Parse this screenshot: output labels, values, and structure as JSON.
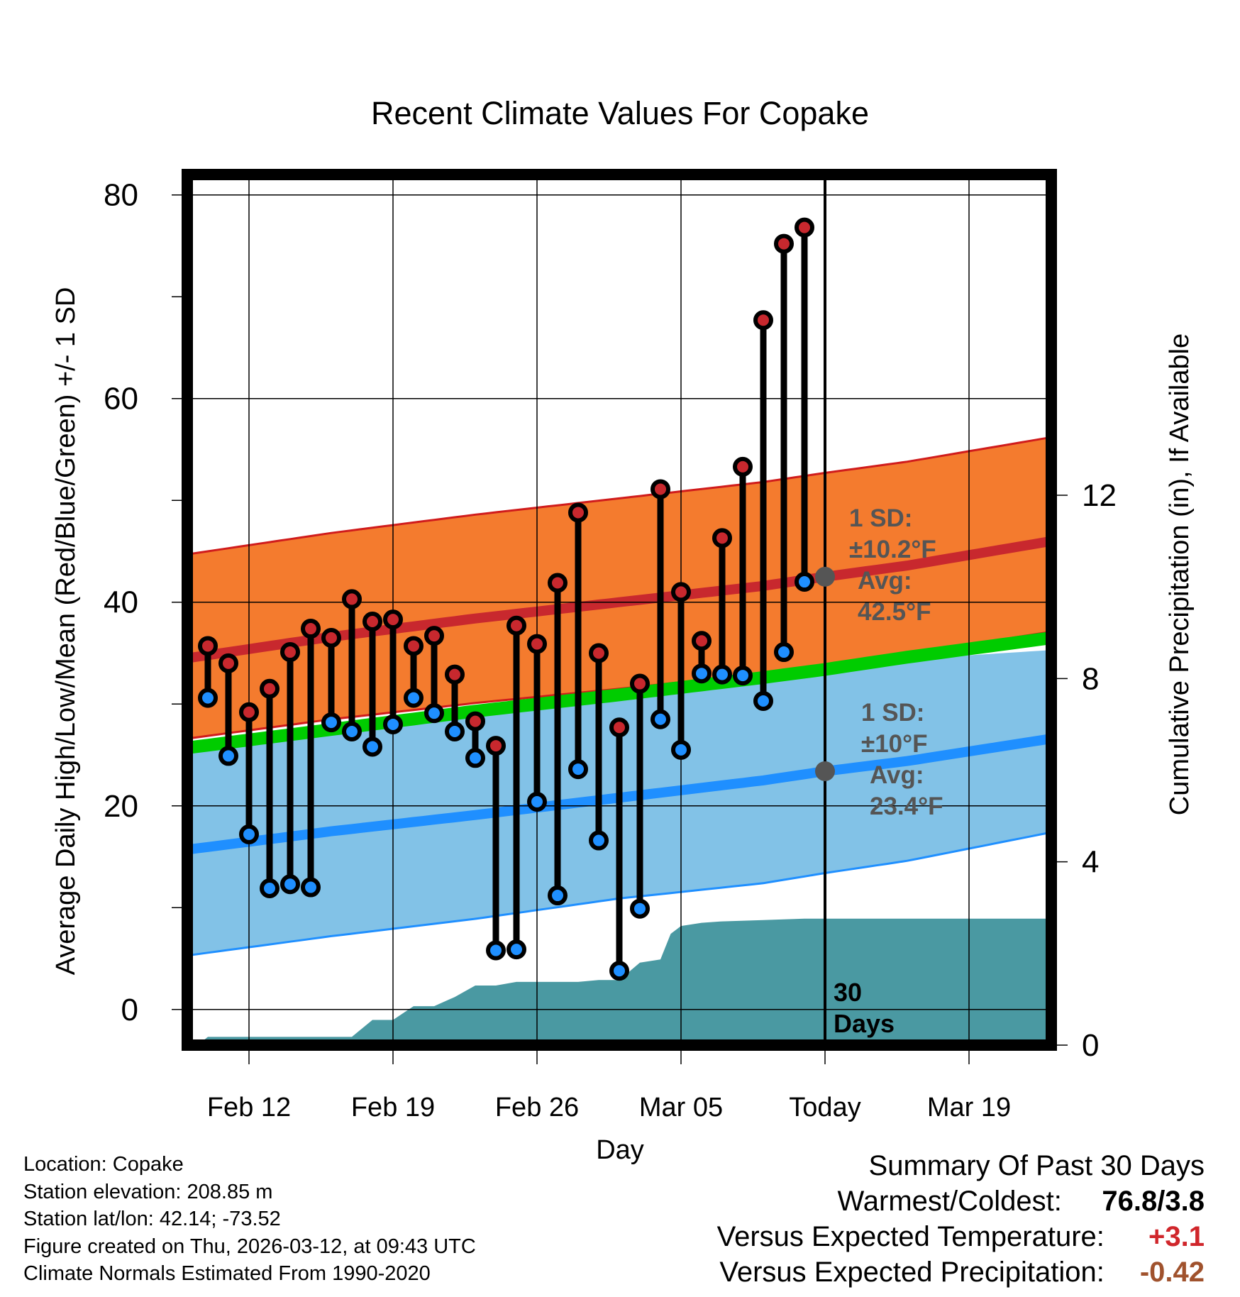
{
  "chart_data": {
    "type": "line",
    "title": "Recent Climate Values For Copake",
    "xlabel": "Day",
    "ylabel": "Average Daily High/Low/Mean (Red/Blue/Green) +/- 1 SD",
    "y2label": "Cumulative Precipitation (in), If Available",
    "x_start": "Feb 9",
    "x_range_days": [
      0,
      42
    ],
    "x_ticks": [
      {
        "day": 3,
        "label": "Feb 12"
      },
      {
        "day": 10,
        "label": "Feb 19"
      },
      {
        "day": 17,
        "label": "Feb 26"
      },
      {
        "day": 24,
        "label": "Mar 05"
      },
      {
        "day": 31,
        "label": "Today"
      },
      {
        "day": 38,
        "label": "Mar 19"
      }
    ],
    "ylim": [
      -3.5,
      82
    ],
    "yticks": [
      0,
      20,
      40,
      60,
      80
    ],
    "y2lim": [
      0,
      19
    ],
    "y2ticks": [
      0,
      4,
      8,
      12
    ],
    "today_day": 31,
    "period_label": "30 Days",
    "series": [
      {
        "name": "Daily High (observed)",
        "color": "#c8282e",
        "day": [
          1,
          2,
          3,
          4,
          5,
          6,
          7,
          8,
          9,
          10,
          11,
          12,
          13,
          14,
          15,
          16,
          17,
          18,
          19,
          20,
          21,
          22,
          23,
          24,
          25,
          26,
          27,
          28,
          29,
          30
        ],
        "values": [
          35.7,
          34.0,
          29.2,
          31.5,
          35.1,
          37.4,
          36.5,
          40.3,
          38.1,
          38.3,
          35.7,
          36.7,
          32.9,
          28.3,
          25.9,
          37.7,
          35.9,
          41.9,
          48.8,
          35.0,
          27.7,
          32.0,
          51.1,
          41.0,
          36.2,
          46.3,
          53.3,
          67.7,
          75.2,
          76.8
        ]
      },
      {
        "name": "Daily Low (observed)",
        "color": "#1f8fff",
        "day": [
          1,
          2,
          3,
          4,
          5,
          6,
          7,
          8,
          9,
          10,
          11,
          12,
          13,
          14,
          15,
          16,
          17,
          18,
          19,
          20,
          21,
          22,
          23,
          24,
          25,
          26,
          27,
          28,
          29,
          30
        ],
        "values": [
          30.6,
          24.9,
          17.2,
          11.9,
          12.3,
          12.0,
          28.2,
          27.3,
          25.8,
          28.0,
          30.6,
          29.1,
          27.3,
          24.7,
          5.8,
          5.9,
          20.4,
          11.2,
          23.6,
          16.6,
          3.8,
          9.9,
          28.5,
          25.5,
          33.0,
          32.9,
          32.8,
          30.3,
          35.1,
          42.0
        ]
      },
      {
        "name": "Normal High",
        "color": "#c8282e",
        "day": [
          0,
          7,
          14,
          21,
          28,
          31,
          35,
          42
        ],
        "values": [
          34.5,
          36.6,
          38.4,
          40.0,
          41.6,
          42.5,
          43.6,
          46.0
        ]
      },
      {
        "name": "Normal High + 1 SD",
        "day": [
          0,
          7,
          14,
          21,
          28,
          31,
          35,
          42
        ],
        "values": [
          44.7,
          46.8,
          48.6,
          50.2,
          51.8,
          52.7,
          53.8,
          56.2
        ]
      },
      {
        "name": "Normal High - 1 SD",
        "day": [
          0,
          7,
          14,
          21,
          28,
          31,
          35,
          42
        ],
        "values": [
          26.6,
          28.5,
          30.1,
          31.5,
          33.0,
          33.6,
          34.9,
          37.1
        ]
      },
      {
        "name": "Normal Low",
        "color": "#1f8fff",
        "day": [
          0,
          7,
          14,
          21,
          28,
          31,
          35,
          42
        ],
        "values": [
          15.7,
          17.5,
          19.1,
          20.8,
          22.5,
          23.4,
          24.4,
          26.6
        ]
      },
      {
        "name": "Normal Low + 1 SD",
        "day": [
          0,
          7,
          14,
          21,
          28,
          31,
          35,
          42
        ],
        "values": [
          25.1,
          27.5,
          29.1,
          30.6,
          32.2,
          33.4,
          34.4,
          35.3
        ]
      },
      {
        "name": "Normal Low - 1 SD",
        "day": [
          0,
          7,
          14,
          21,
          28,
          31,
          35,
          42
        ],
        "values": [
          5.3,
          7.2,
          8.9,
          10.9,
          12.4,
          13.4,
          14.6,
          17.4
        ]
      },
      {
        "name": "Normal Mean",
        "color": "#00cc00",
        "day": [
          0,
          7,
          14,
          21,
          28,
          31,
          35,
          42
        ],
        "values": [
          25.7,
          27.5,
          29.3,
          30.9,
          32.6,
          33.4,
          34.6,
          36.5
        ]
      },
      {
        "name": "Cumulative Precipitation (in)",
        "color": "#4a99a2",
        "axis": "y2",
        "day": [
          0,
          0.5,
          1,
          8,
          9,
          10,
          11,
          12,
          13,
          14,
          15,
          16,
          17,
          18,
          19,
          20,
          21,
          22,
          23,
          23.5,
          24,
          25,
          26,
          28,
          30,
          42
        ],
        "values": [
          0,
          0,
          0.18,
          0.18,
          0.55,
          0.55,
          0.85,
          0.85,
          1.05,
          1.3,
          1.3,
          1.38,
          1.38,
          1.38,
          1.38,
          1.42,
          1.42,
          1.8,
          1.87,
          2.43,
          2.6,
          2.67,
          2.7,
          2.73,
          2.76,
          2.76
        ]
      }
    ],
    "annotations": [
      {
        "label": "1 SD:",
        "sub": "±10.2°F",
        "avg_label": "Avg:",
        "avg": "42.5°F",
        "series": "Normal High"
      },
      {
        "label": "1 SD:",
        "sub": "±10°F",
        "avg_label": "Avg:",
        "avg": "23.4°F",
        "series": "Normal Low"
      }
    ]
  },
  "footer": {
    "location": "Location: Copake",
    "elevation": "Station elevation: 208.85 m",
    "latlon": "Station lat/lon: 42.14; -73.52",
    "created": "Figure created on Thu, 2026-03-12, at 09:43 UTC",
    "normals": "Climate Normals Estimated From 1990-2020"
  },
  "summary": {
    "title": "Summary Of Past 30 Days",
    "warmest_label": "Warmest/Coldest:",
    "warmest_value": "76.8/3.8",
    "temp_label": "Versus Expected Temperature:",
    "temp_value": "+3.1",
    "temp_color": "#d0262b",
    "precip_label": "Versus Expected Precipitation:",
    "precip_value": "-0.42",
    "precip_color": "#a0522d"
  },
  "colors": {
    "high_band": "#f47b2e",
    "low_band": "#82c2e7",
    "mean_band": "#00cc00",
    "precip": "#4a99a2",
    "annotation": "#555555"
  }
}
